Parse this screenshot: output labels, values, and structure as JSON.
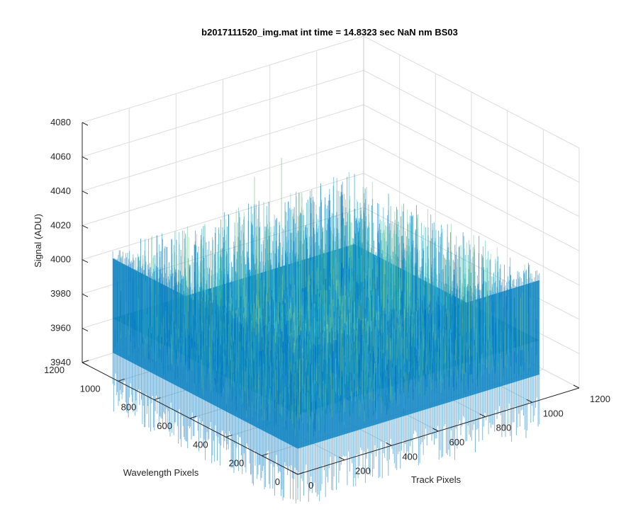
{
  "chart_data": {
    "type": "surface",
    "title": "b2017111520_img.mat int time = 14.8323 sec  NaN nm BS03",
    "xlabel": "Track Pixels",
    "ylabel": "Wavelength Pixels",
    "zlabel": "Signal (ADU)",
    "xlim": [
      0,
      1200
    ],
    "ylim": [
      0,
      1200
    ],
    "zlim": [
      3940,
      4080
    ],
    "x_ticks": [
      "0",
      "200",
      "400",
      "600",
      "800",
      "1000",
      "1200"
    ],
    "y_ticks": [
      "0",
      "200",
      "400",
      "600",
      "800",
      "1000",
      "1200"
    ],
    "z_ticks": [
      "3940",
      "3960",
      "3980",
      "4000",
      "4020",
      "4040",
      "4060",
      "4080"
    ],
    "grid": true,
    "surface": {
      "x_range": [
        0,
        1030
      ],
      "y_range": [
        0,
        1030
      ],
      "mean_signal": 3975,
      "noise_range": [
        3955,
        4010
      ],
      "peak_signal": 4060,
      "colormap": [
        "#0072bd",
        "#0a84c8",
        "#1aa3c4",
        "#3bbbb5",
        "#7cc894"
      ]
    }
  }
}
